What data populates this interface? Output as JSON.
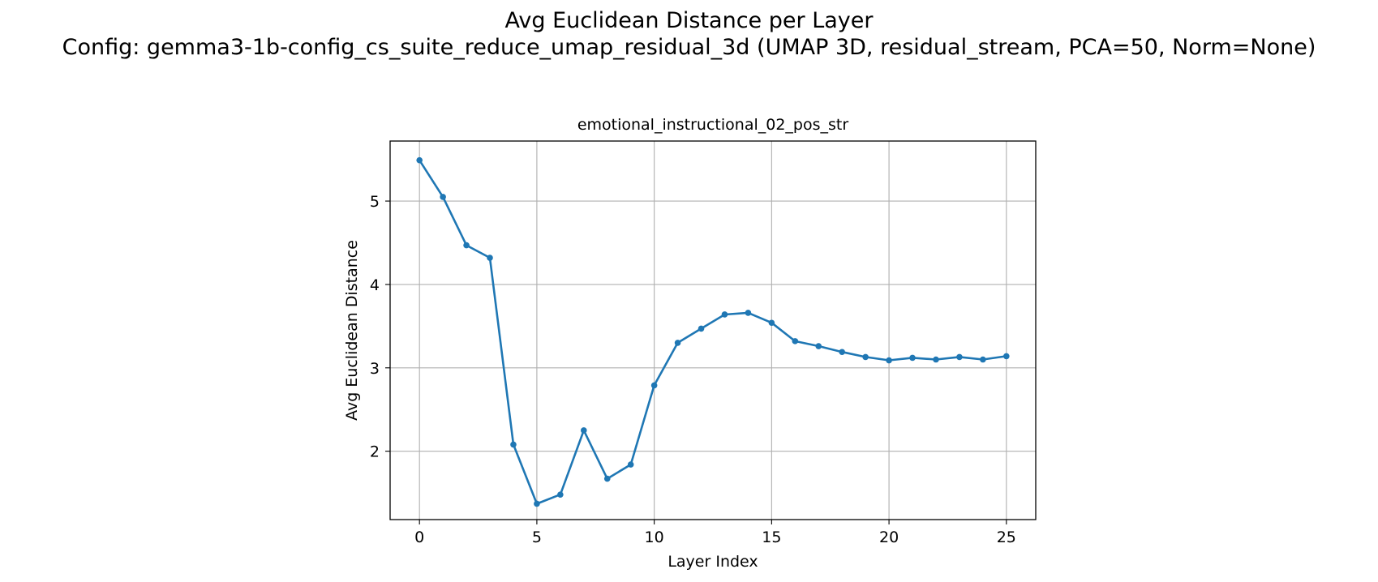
{
  "figure": {
    "suptitle_line1": "Avg Euclidean Distance per Layer",
    "suptitle_line2": "Config: gemma3-1b-config_cs_suite_reduce_umap_residual_3d (UMAP 3D, residual_stream, PCA=50, Norm=None)"
  },
  "chart_data": {
    "type": "line",
    "title": "emotional_instructional_02_pos_str",
    "xlabel": "Layer Index",
    "ylabel": "Avg Euclidean Distance",
    "xlim": [
      -1.25,
      26.25
    ],
    "ylim": [
      1.18,
      5.72
    ],
    "xticks": [
      0,
      5,
      10,
      15,
      20,
      25
    ],
    "yticks": [
      2,
      3,
      4,
      5
    ],
    "grid": true,
    "color": "#1f77b4",
    "marker": "circle",
    "series": [
      {
        "x": [
          0,
          1,
          2,
          3,
          4,
          5,
          6,
          7,
          8,
          9,
          10,
          11,
          12,
          13,
          14,
          15,
          16,
          17,
          18,
          19,
          20,
          21,
          22,
          23,
          24,
          25
        ],
        "y": [
          5.49,
          5.05,
          4.47,
          4.32,
          2.08,
          1.37,
          1.48,
          2.25,
          1.67,
          1.84,
          2.79,
          3.3,
          3.47,
          3.64,
          3.66,
          3.54,
          3.32,
          3.26,
          3.19,
          3.13,
          3.09,
          3.12,
          3.1,
          3.13,
          3.1,
          3.14
        ]
      }
    ]
  }
}
